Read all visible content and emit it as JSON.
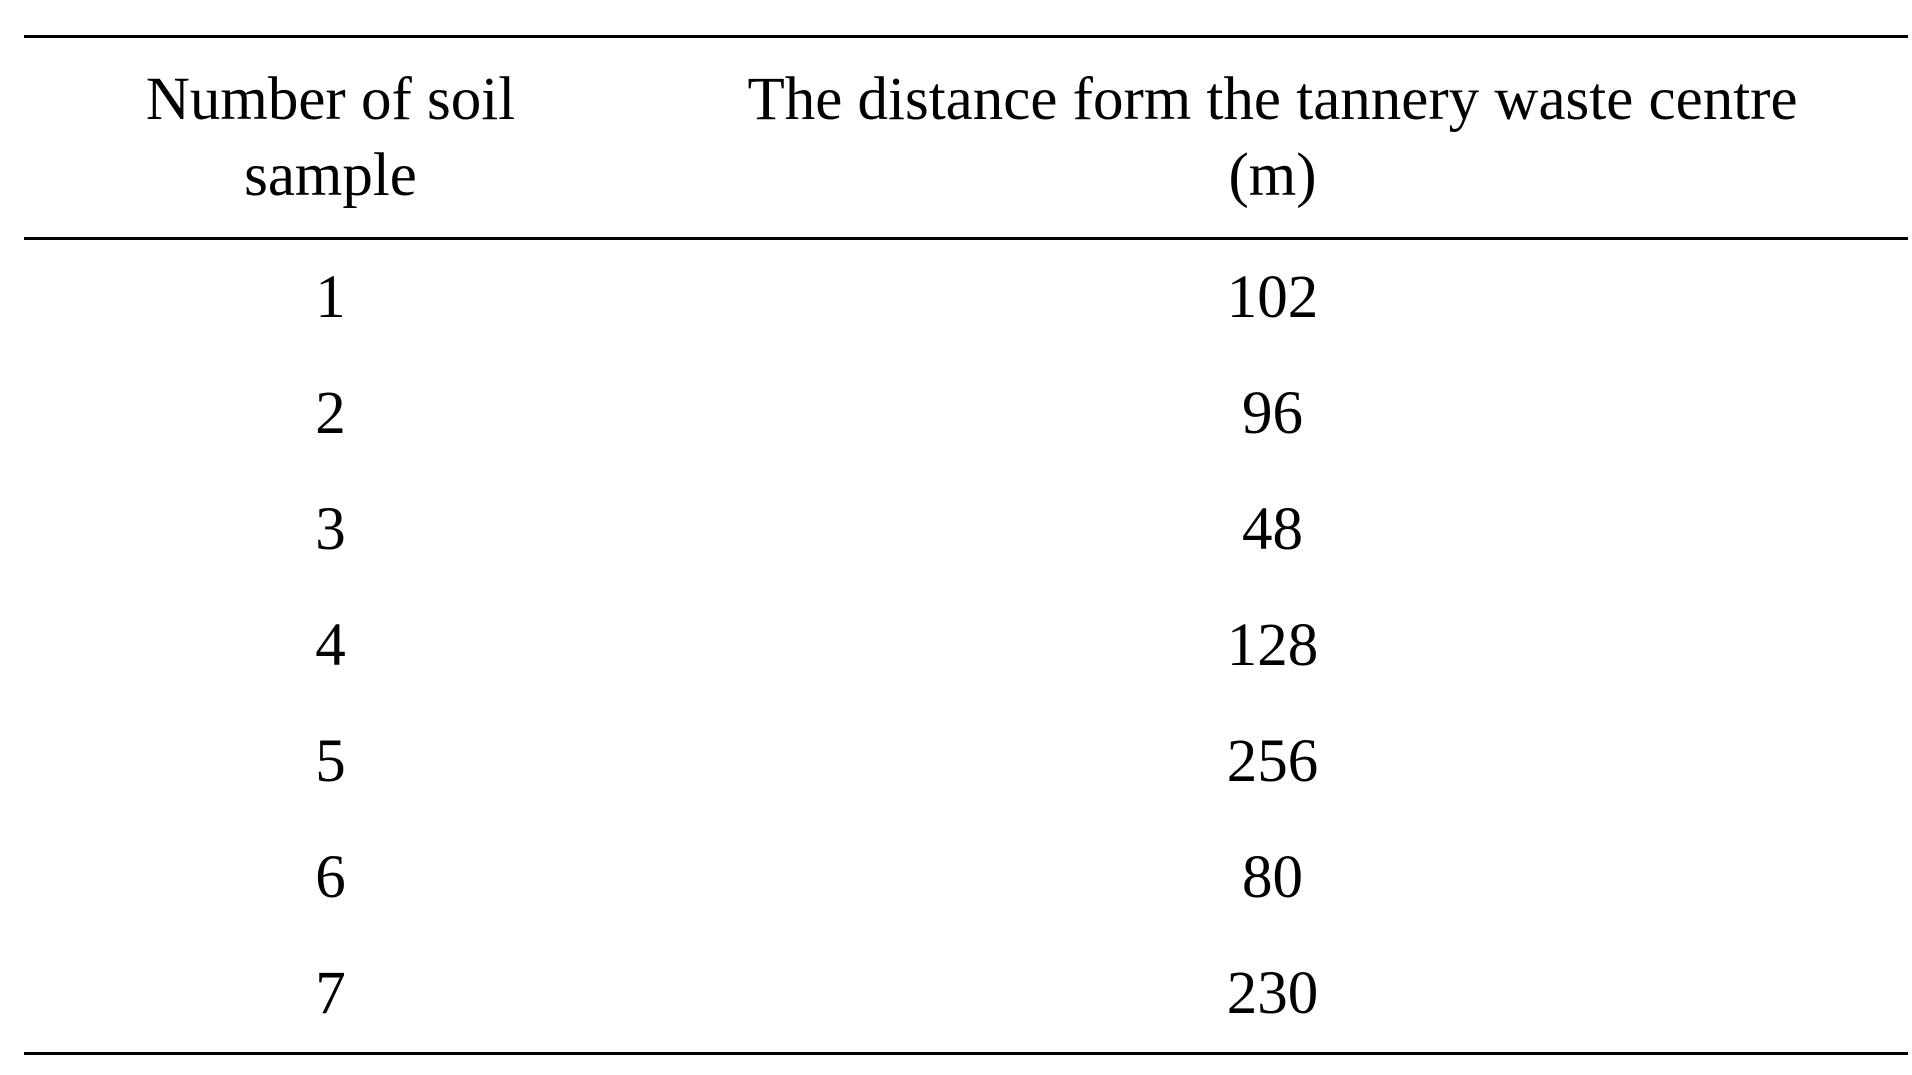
{
  "table": {
    "headers": {
      "col1_line1": "Number of soil",
      "col1_line2": "sample",
      "col2_line1": "The distance form the tannery waste centre",
      "col2_line2": "(m)"
    },
    "rows": [
      {
        "sample": "1",
        "distance": "102"
      },
      {
        "sample": "2",
        "distance": "96"
      },
      {
        "sample": "3",
        "distance": "48"
      },
      {
        "sample": "4",
        "distance": "128"
      },
      {
        "sample": "5",
        "distance": "256"
      },
      {
        "sample": "6",
        "distance": "80"
      },
      {
        "sample": "7",
        "distance": "230"
      }
    ]
  }
}
